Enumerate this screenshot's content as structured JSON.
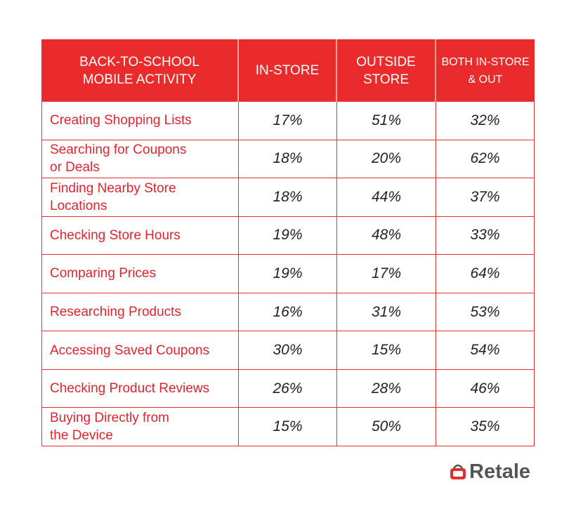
{
  "table": {
    "header": [
      [
        "BACK-TO-SCHOOL",
        "MOBILE ACTIVITY"
      ],
      [
        "IN-STORE"
      ],
      [
        "OUTSIDE",
        "STORE"
      ],
      [
        "BOTH IN-STORE",
        "& OUT"
      ]
    ],
    "rows": [
      [
        [
          "Creating Shopping Lists"
        ],
        "17%",
        "51%",
        "32%"
      ],
      [
        [
          "Searching for Coupons",
          "or Deals"
        ],
        "18%",
        "20%",
        "62%"
      ],
      [
        [
          "Finding Nearby Store",
          "Locations"
        ],
        "18%",
        "44%",
        "37%"
      ],
      [
        [
          "Checking Store Hours"
        ],
        "19%",
        "48%",
        "33%"
      ],
      [
        [
          "Comparing Prices"
        ],
        "19%",
        "17%",
        "64%"
      ],
      [
        [
          "Researching Products"
        ],
        "16%",
        "31%",
        "53%"
      ],
      [
        [
          "Accessing Saved Coupons"
        ],
        "30%",
        "15%",
        "54%"
      ],
      [
        [
          "Checking Product Reviews"
        ],
        "26%",
        "28%",
        "46%"
      ],
      [
        [
          "Buying Directly from",
          "the Device"
        ],
        "15%",
        "50%",
        "35%"
      ]
    ]
  },
  "logo": "Retale"
}
